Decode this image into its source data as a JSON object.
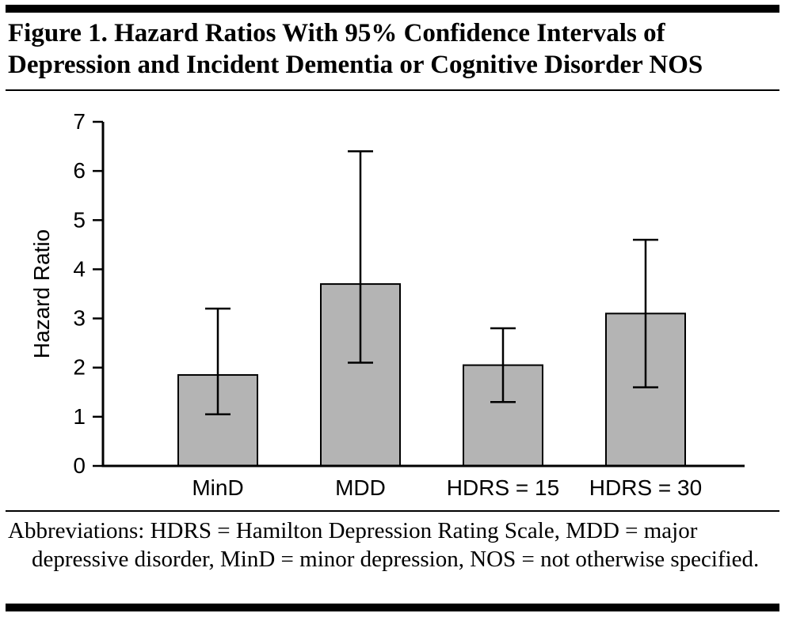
{
  "page": {
    "background": "#ffffff",
    "rule_color": "#000000"
  },
  "header": {
    "title": "Figure 1. Hazard Ratios With 95% Confidence Intervals of Depression and Incident Dementia or Cognitive Disorder NOS"
  },
  "footnote": {
    "text": "Abbreviations: HDRS = Hamilton Depression Rating Scale, MDD = major depressive disorder, MinD = minor depression, NOS = not otherwise specified."
  },
  "chart_data": {
    "type": "bar",
    "title": "Hazard Ratios With 95% Confidence Intervals of Depression and Incident Dementia or Cognitive Disorder NOS",
    "categories": [
      "MinD",
      "MDD",
      "HDRS = 15",
      "HDRS = 30"
    ],
    "values": [
      1.85,
      3.7,
      2.05,
      3.1
    ],
    "error_low": [
      1.05,
      2.1,
      1.3,
      1.6
    ],
    "error_high": [
      3.2,
      6.4,
      2.8,
      4.6
    ],
    "xlabel": "",
    "ylabel": "Hazard Ratio",
    "ylim": [
      0,
      7
    ],
    "yticks": [
      0,
      1,
      2,
      3,
      4,
      5,
      6,
      7
    ],
    "grid": false,
    "legend": false,
    "bar_color": "#b4b4b4",
    "bar_border_color": "#000000",
    "axis_color": "#000000",
    "error_bar_color": "#000000"
  }
}
